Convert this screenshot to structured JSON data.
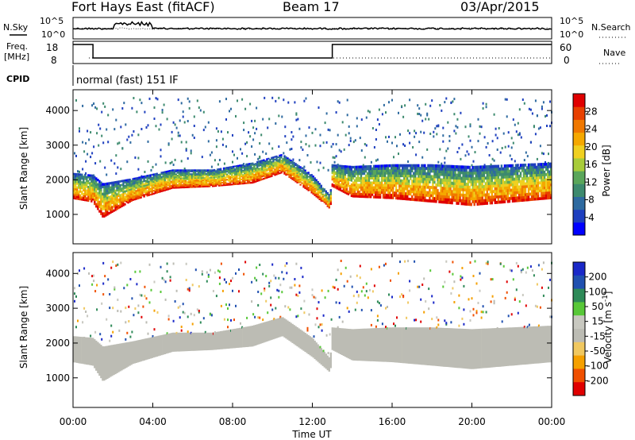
{
  "header": {
    "station": "Fort Hays East (fitACF)",
    "beam": "Beam 17",
    "date": "03/Apr/2015"
  },
  "noise_panel": {
    "left_label": "N.Sky",
    "left_ticks": [
      "10^5",
      "10^0"
    ],
    "right_ticks": [
      "10^5",
      "10^0"
    ],
    "right_label": "N.Search"
  },
  "freq_panel": {
    "left_label_line1": "Freq.",
    "left_label_line2": "[MHz]",
    "left_ticks": [
      "18",
      "8"
    ],
    "right_ticks": [
      "60",
      "0"
    ],
    "right_label": "Nave"
  },
  "cpid": {
    "label": "CPID",
    "value": "normal (fast) 151 IF"
  },
  "colors": {
    "power": [
      "#0000ff",
      "#1e3fbf",
      "#2e6aa0",
      "#3d8a6e",
      "#5aa65a",
      "#a8cc3a",
      "#f0d020",
      "#f5a800",
      "#f07800",
      "#e84000",
      "#e00000"
    ],
    "velocity": [
      "#e00000",
      "#f05000",
      "#f5a000",
      "#f0c860",
      "#bcbcb4",
      "#c8c8c0",
      "#58c838",
      "#2e8a58",
      "#2050b0",
      "#1a28c8"
    ],
    "ground": "#bcbcb4"
  },
  "chart_data": [
    {
      "type": "heatmap",
      "name": "power-panel",
      "xlabel": "",
      "ylabel": "Slant Range [km]",
      "ylim": [
        150,
        4600
      ],
      "xlim": [
        0,
        24
      ],
      "y_ticks": [
        "1000",
        "2000",
        "3000",
        "4000"
      ],
      "y_tick_values": [
        1000,
        2000,
        3000,
        4000
      ],
      "colorbar_label": "Power [dB]",
      "colorbar_ticks": [
        "28",
        "24",
        "20",
        "16",
        "12",
        "8",
        "4"
      ],
      "colorbar_tick_values": [
        28,
        24,
        20,
        16,
        12,
        8,
        4
      ],
      "colorbar_range": [
        0,
        32
      ],
      "echo_band": {
        "time_h": [
          0,
          1,
          1.5,
          3,
          5,
          7,
          9,
          10.5,
          12,
          12.9,
          13,
          14,
          16,
          18,
          20,
          22,
          24
        ],
        "lower_km": [
          1450,
          1350,
          900,
          1400,
          1750,
          1800,
          1900,
          2200,
          1600,
          1150,
          1800,
          1500,
          1450,
          1350,
          1250,
          1350,
          1450
        ],
        "upper_km": [
          2200,
          2150,
          1900,
          2050,
          2300,
          2300,
          2500,
          2750,
          2150,
          1550,
          2450,
          2400,
          2450,
          2450,
          2400,
          2450,
          2500
        ]
      }
    },
    {
      "type": "heatmap",
      "name": "velocity-panel",
      "xlabel": "Time UT",
      "ylabel": "Slant Range [km]",
      "ylim": [
        150,
        4600
      ],
      "xlim": [
        0,
        24
      ],
      "x_ticks": [
        "00:00",
        "04:00",
        "08:00",
        "12:00",
        "16:00",
        "20:00",
        "00:00"
      ],
      "x_tick_values": [
        0,
        4,
        8,
        12,
        16,
        20,
        24
      ],
      "y_ticks": [
        "1000",
        "2000",
        "3000",
        "4000"
      ],
      "y_tick_values": [
        1000,
        2000,
        3000,
        4000
      ],
      "colorbar_label": "Velocity [m s^-1]",
      "colorbar_ticks": [
        "200",
        "100",
        "50",
        "15",
        "-15",
        "-50",
        "-100",
        "-200"
      ],
      "colorbar_tick_values": [
        200,
        100,
        50,
        15,
        -15,
        -50,
        -100,
        -200
      ]
    }
  ]
}
